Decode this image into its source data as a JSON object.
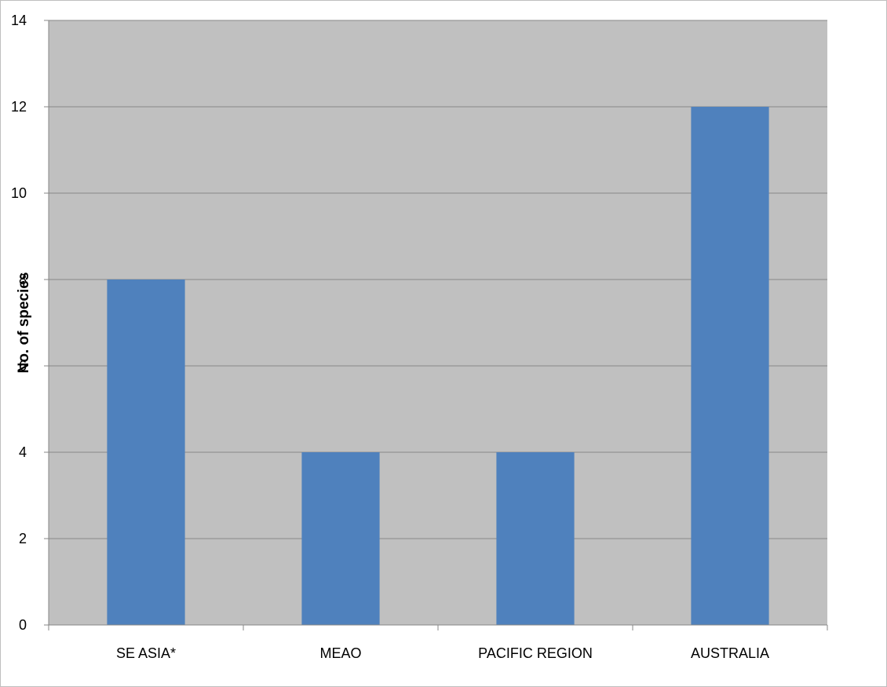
{
  "chart_data": {
    "type": "bar",
    "title": "",
    "xlabel": "",
    "ylabel": "No. of species",
    "categories": [
      "SE ASIA*",
      "MEAO",
      "PACIFIC REGION",
      "AUSTRALIA"
    ],
    "values": [
      8,
      4,
      4,
      12
    ],
    "ylim": [
      0,
      14
    ],
    "yticks": [
      "0",
      "2",
      "4",
      "6",
      "8",
      "10",
      "12",
      "14"
    ],
    "grid": true,
    "legend": "none",
    "colors": {
      "bar": "#4f81bd",
      "plot_background": "#c0c0c0",
      "gridline": "#878787",
      "axis": "#878787"
    }
  }
}
